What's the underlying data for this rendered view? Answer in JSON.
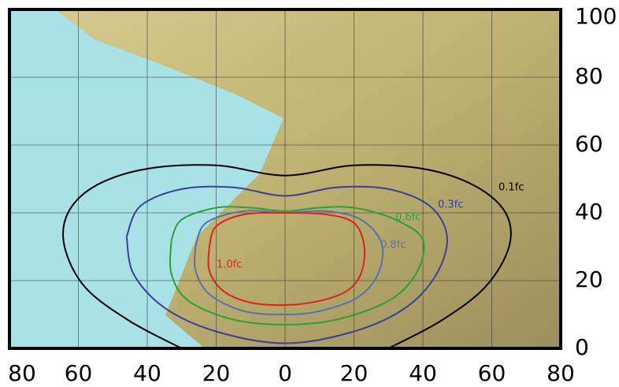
{
  "chart_data": {
    "type": "line",
    "xlim": [
      -80,
      80
    ],
    "ylim": [
      0,
      100
    ],
    "xticks": [
      {
        "value": -80,
        "label": "80"
      },
      {
        "value": -60,
        "label": "60"
      },
      {
        "value": -40,
        "label": "40"
      },
      {
        "value": -20,
        "label": "20"
      },
      0,
      20,
      40,
      60,
      80
    ],
    "yticks": [
      0,
      20,
      40,
      60,
      80,
      100
    ],
    "grid": true,
    "series": [
      {
        "name": "0.1fc",
        "color": "#000000",
        "x": [
          -30,
          -45,
          -58,
          -64,
          -63,
          -55,
          -40,
          -20,
          0,
          20,
          40,
          55,
          64,
          65,
          58,
          45,
          30
        ],
        "values": [
          0,
          8,
          18,
          30,
          40,
          48,
          53,
          54,
          51,
          54,
          53,
          48,
          40,
          30,
          18,
          8,
          0
        ]
      },
      {
        "name": "0.3fc",
        "color": "#3a3f9a",
        "x": [
          -46,
          -42,
          -30,
          -15,
          0,
          15,
          30,
          42,
          47,
          44,
          35,
          20,
          0,
          -20,
          -35,
          -44,
          -46
        ],
        "values": [
          33,
          42,
          47,
          47.5,
          45,
          47.5,
          47,
          42,
          33,
          22,
          12,
          5,
          1.5,
          5,
          12,
          22,
          33
        ]
      },
      {
        "name": "0.6fc",
        "color": "#2aa03a",
        "x": [
          -33,
          -30,
          -20,
          -10,
          0,
          10,
          20,
          32,
          40,
          38,
          30,
          15,
          0,
          -15,
          -28,
          -33,
          -33
        ],
        "values": [
          32,
          38,
          41.5,
          41.5,
          40.5,
          41.5,
          41.5,
          38,
          32,
          22,
          14,
          8.5,
          7,
          8.5,
          14,
          22,
          32
        ]
      },
      {
        "name": "0.8fc",
        "color": "#5a70b0",
        "x": [
          -26,
          -23,
          -12,
          0,
          12,
          22,
          28,
          27,
          21,
          10,
          0,
          -12,
          -22,
          -26,
          -26
        ],
        "values": [
          30,
          37,
          40.5,
          40,
          40.5,
          38,
          31,
          22,
          15,
          11,
          10,
          11,
          16,
          23,
          30
        ]
      },
      {
        "name": "1.0fc",
        "color": "#e02020",
        "x": [
          -22,
          -20,
          -12,
          0,
          12,
          20,
          23,
          22,
          18,
          10,
          0,
          -10,
          -18,
          -22,
          -22
        ],
        "values": [
          30,
          36,
          39.5,
          40,
          39.5,
          37,
          30,
          22,
          17,
          14,
          12.8,
          13.5,
          17,
          23,
          30
        ]
      }
    ]
  }
}
